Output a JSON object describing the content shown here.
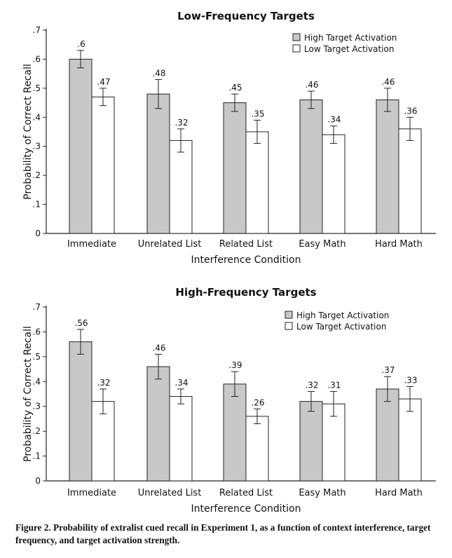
{
  "chart_data": [
    {
      "type": "bar",
      "title": "Low-Frequency Targets",
      "xlabel": "Interference Condition",
      "ylabel": "Probability of Correct Recall",
      "ylim": [
        0,
        0.7
      ],
      "yticks": [
        "0",
        ".1",
        ".2",
        ".3",
        ".4",
        ".5",
        ".6",
        ".7"
      ],
      "categories": [
        "Immediate",
        "Unrelated List",
        "Related List",
        "Easy Math",
        "Hard Math"
      ],
      "legend_position": "top-right",
      "series": [
        {
          "name": "High Target Activation",
          "color": "#c8c8c8",
          "values": [
            0.6,
            0.48,
            0.45,
            0.46,
            0.46
          ],
          "labels": [
            ".6",
            ".48",
            ".45",
            ".46",
            ".46"
          ],
          "errors": [
            0.03,
            0.05,
            0.03,
            0.03,
            0.04
          ]
        },
        {
          "name": "Low Target Activation",
          "color": "#ffffff",
          "values": [
            0.47,
            0.32,
            0.35,
            0.34,
            0.36
          ],
          "labels": [
            ".47",
            ".32",
            ".35",
            ".34",
            ".36"
          ],
          "errors": [
            0.03,
            0.04,
            0.04,
            0.03,
            0.04
          ]
        }
      ]
    },
    {
      "type": "bar",
      "title": "High-Frequency Targets",
      "xlabel": "Interference Condition",
      "ylabel": "Probability of Correct Recall",
      "ylim": [
        0,
        0.7
      ],
      "yticks": [
        "0",
        ".1",
        ".2",
        ".3",
        ".4",
        ".5",
        ".6",
        ".7"
      ],
      "categories": [
        "Immediate",
        "Unrelated List",
        "Related List",
        "Easy Math",
        "Hard Math"
      ],
      "legend_position": "top-right",
      "series": [
        {
          "name": "High Target Activation",
          "color": "#c8c8c8",
          "values": [
            0.56,
            0.46,
            0.39,
            0.32,
            0.37
          ],
          "labels": [
            ".56",
            ".46",
            ".39",
            ".32",
            ".37"
          ],
          "errors": [
            0.05,
            0.05,
            0.05,
            0.04,
            0.05
          ]
        },
        {
          "name": "Low Target Activation",
          "color": "#ffffff",
          "values": [
            0.32,
            0.34,
            0.26,
            0.31,
            0.33
          ],
          "labels": [
            ".32",
            ".34",
            ".26",
            ".31",
            ".33"
          ],
          "errors": [
            0.05,
            0.03,
            0.03,
            0.05,
            0.05
          ]
        }
      ]
    }
  ],
  "caption": "Figure 2. Probability of extralist cued recall in Experiment 1, as a function of context interference, target frequency, and target activation strength."
}
